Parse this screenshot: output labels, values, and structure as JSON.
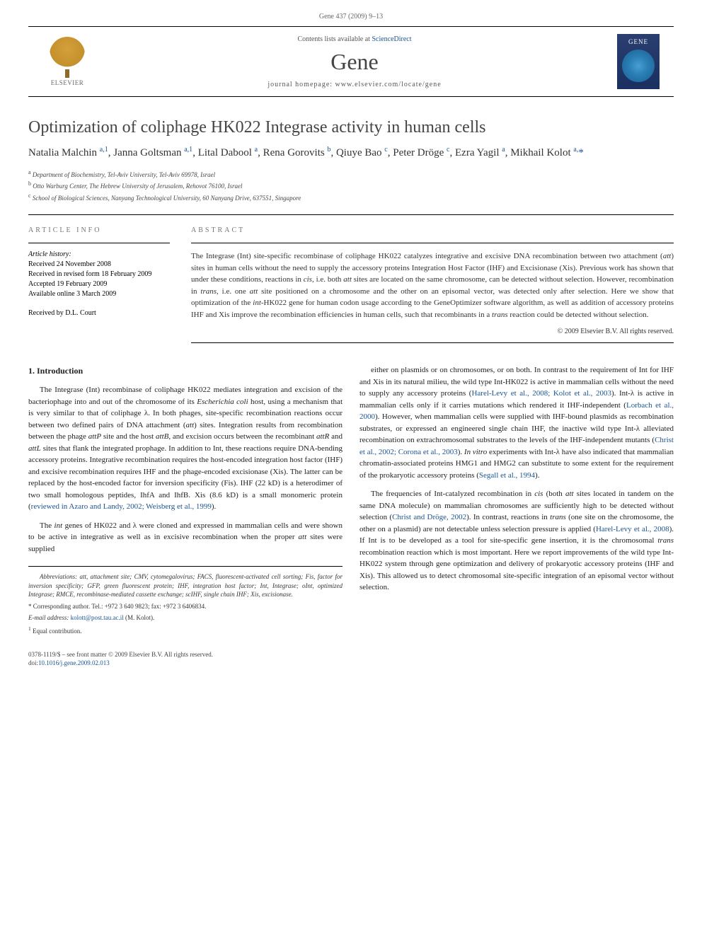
{
  "header": {
    "running_head": "Gene 437 (2009) 9–13"
  },
  "banner": {
    "publisher": "ELSEVIER",
    "contents_prefix": "Contents lists available at ",
    "contents_link": "ScienceDirect",
    "journal": "Gene",
    "homepage_label": "journal homepage: www.elsevier.com/locate/gene",
    "cover_title": "GENE"
  },
  "article": {
    "title": "Optimization of coliphage HK022 Integrase activity in human cells",
    "authors_html": "Natalia Malchin <sup>a,1</sup>, Janna Goltsman <sup>a,1</sup>, Lital Dabool <sup>a</sup>, Rena Gorovits <sup>b</sup>, Qiuye Bao <sup>c</sup>, Peter Dröge <sup>c</sup>, Ezra Yagil <sup>a</sup>, Mikhail Kolot <sup>a,</sup><span class='corresponding'>*</span>",
    "affiliations": [
      "a Department of Biochemistry, Tel-Aviv University, Tel-Aviv 69978, Israel",
      "b Otto Warburg Center, The Hebrew University of Jerusalem, Rehovot 76100, Israel",
      "c School of Biological Sciences, Nanyang Technological University, 60 Nanyang Drive, 637551, Singapore"
    ]
  },
  "info": {
    "section_label": "ARTICLE INFO",
    "history_label": "Article history:",
    "history": [
      "Received 24 November 2008",
      "Received in revised form 18 February 2009",
      "Accepted 19 February 2009",
      "Available online 3 March 2009"
    ],
    "received_by": "Received by D.L. Court"
  },
  "abstract": {
    "section_label": "ABSTRACT",
    "text": "The Integrase (Int) site-specific recombinase of coliphage HK022 catalyzes integrative and excisive DNA recombination between two attachment (att) sites in human cells without the need to supply the accessory proteins Integration Host Factor (IHF) and Excisionase (Xis). Previous work has shown that under these conditions, reactions in cis, i.e. both att sites are located on the same chromosome, can be detected without selection. However, recombination in trans, i.e. one att site positioned on a chromosome and the other on an episomal vector, was detected only after selection. Here we show that optimization of the int-HK022 gene for human codon usage according to the GeneOptimizer software algorithm, as well as addition of accessory proteins IHF and Xis improve the recombination efficiencies in human cells, such that recombinants in a trans reaction could be detected without selection.",
    "copyright": "© 2009 Elsevier B.V. All rights reserved."
  },
  "body": {
    "intro_heading": "1. Introduction",
    "col1_para1": "The Integrase (Int) recombinase of coliphage HK022 mediates integration and excision of the bacteriophage into and out of the chromosome of its Escherichia coli host, using a mechanism that is very similar to that of coliphage λ. In both phages, site-specific recombination reactions occur between two defined pairs of DNA attachment (att) sites. Integration results from recombination between the phage attP site and the host attB, and excision occurs between the recombinant attR and attL sites that flank the integrated prophage. In addition to Int, these reactions require DNA-bending accessory proteins. Integrative recombination requires the host-encoded integration host factor (IHF) and excisive recombination requires IHF and the phage-encoded excisionase (Xis). The latter can be replaced by the host-encoded factor for inversion specificity (Fis). IHF (22 kD) is a heterodimer of two small homologous peptides, IhfA and IhfB. Xis (8.6 kD) is a small monomeric protein (reviewed in Azaro and Landy, 2002; Weisberg et al., 1999).",
    "col1_para2": "The int genes of HK022 and λ were cloned and expressed in mammalian cells and were shown to be active in integrative as well as in excisive recombination when the proper att sites were supplied",
    "col2_para1": "either on plasmids or on chromosomes, or on both. In contrast to the requirement of Int for IHF and Xis in its natural milieu, the wild type Int-HK022 is active in mammalian cells without the need to supply any accessory proteins (Harel-Levy et al., 2008; Kolot et al., 2003). Int-λ is active in mammalian cells only if it carries mutations which rendered it IHF-independent (Lorbach et al., 2000). However, when mammalian cells were supplied with IHF-bound plasmids as recombination substrates, or expressed an engineered single chain IHF, the inactive wild type Int-λ alleviated recombination on extrachromosomal substrates to the levels of the IHF-independent mutants (Christ et al., 2002; Corona et al., 2003). In vitro experiments with Int-λ have also indicated that mammalian chromatin-associated proteins HMG1 and HMG2 can substitute to some extent for the requirement of the prokaryotic accessory proteins (Segall et al., 1994).",
    "col2_para2": "The frequencies of Int-catalyzed recombination in cis (both att sites located in tandem on the same DNA molecule) on mammalian chromosomes are sufficiently high to be detected without selection (Christ and Dröge, 2002). In contrast, reactions in trans (one site on the chromosome, the other on a plasmid) are not detectable unless selection pressure is applied (Harel-Levy et al., 2008). If Int is to be developed as a tool for site-specific gene insertion, it is the chromosomal trans recombination reaction which is most important. Here we report improvements of the wild type Int-HK022 system through gene optimization and delivery of prokaryotic accessory proteins (IHF and Xis). This allowed us to detect chromosomal site-specific integration of an episomal vector without selection."
  },
  "footnotes": {
    "abbrev": "Abbreviations: att, attachment site; CMV, cytomegalovirus; FACS, fluorescent-activated cell sorting; Fis, factor for inversion specificity; GFP, green fluorescent protein; IHF, integration host factor; Int, Integrase; oInt, optimized Integrase; RMCE, recombinase-mediated cassette exchange; scIHF, single chain IHF; Xis, excisionase.",
    "corresponding": "* Corresponding author. Tel.: +972 3 640 9823; fax: +972 3 6406834.",
    "email_label": "E-mail address: ",
    "email": "kolott@post.tau.ac.il",
    "email_suffix": " (M. Kolot).",
    "equal": "1 Equal contribution."
  },
  "footer": {
    "issn": "0378-1119/$ – see front matter © 2009 Elsevier B.V. All rights reserved.",
    "doi_label": "doi:",
    "doi": "10.1016/j.gene.2009.02.013"
  }
}
